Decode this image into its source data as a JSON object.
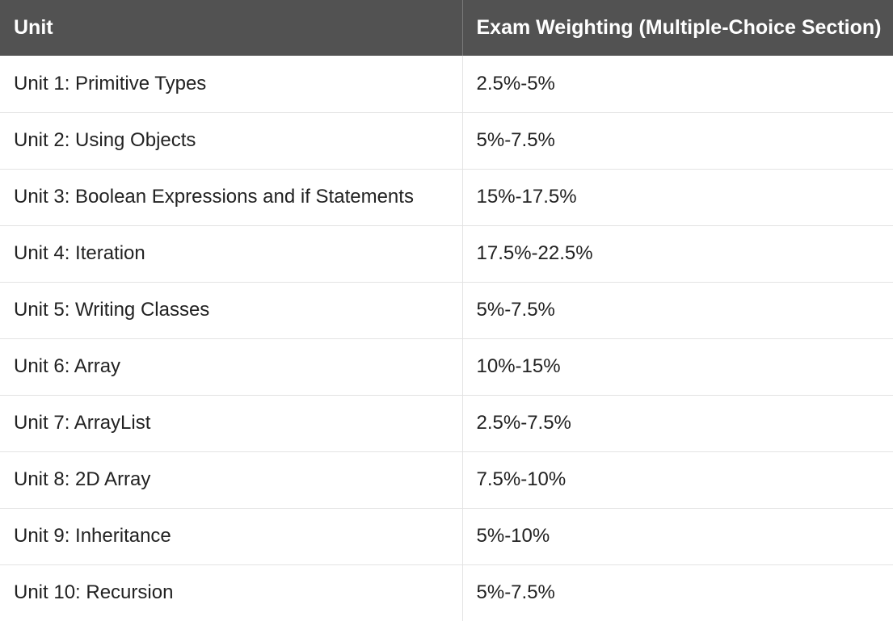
{
  "table": {
    "headers": [
      "Unit",
      "Exam Weighting (Multiple-Choice Section)"
    ],
    "rows": [
      [
        "Unit 1: Primitive Types",
        "2.5%-5%"
      ],
      [
        "Unit 2: Using Objects",
        "5%-7.5%"
      ],
      [
        "Unit 3: Boolean Expressions and if Statements",
        "15%-17.5%"
      ],
      [
        "Unit 4: Iteration",
        "17.5%-22.5%"
      ],
      [
        "Unit 5: Writing Classes",
        "5%-7.5%"
      ],
      [
        "Unit 6: Array",
        "10%-15%"
      ],
      [
        "Unit 7: ArrayList",
        "2.5%-7.5%"
      ],
      [
        "Unit 8: 2D Array",
        "7.5%-10%"
      ],
      [
        "Unit 9: Inheritance",
        "5%-10%"
      ],
      [
        "Unit 10: Recursion",
        "5%-7.5%"
      ]
    ]
  },
  "colors": {
    "header_bg": "#525252",
    "header_text": "#ffffff",
    "body_text": "#222222",
    "border": "#e3e3e3"
  }
}
